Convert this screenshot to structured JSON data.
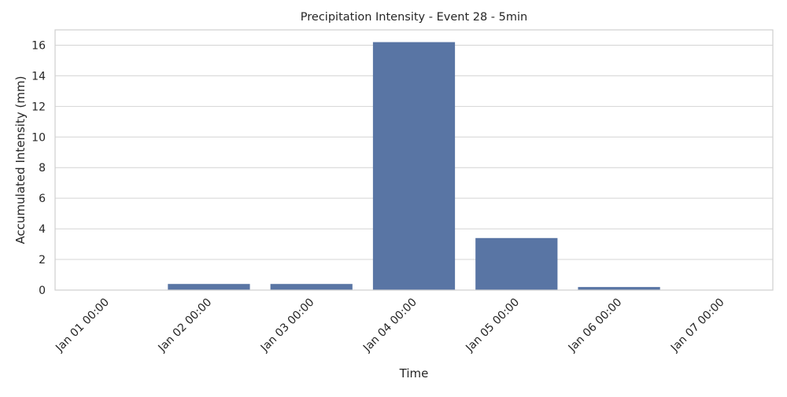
{
  "chart_data": {
    "type": "bar",
    "title": "Precipitation Intensity - Event 28 - 5min",
    "xlabel": "Time",
    "ylabel": "Accumulated Intensity (mm)",
    "categories": [
      "Jan 01 00:00",
      "Jan 02 00:00",
      "Jan 03 00:00",
      "Jan 04 00:00",
      "Jan 05 00:00",
      "Jan 06 00:00",
      "Jan 07 00:00"
    ],
    "values": [
      0.0,
      0.4,
      0.4,
      16.2,
      3.4,
      0.2,
      0.0
    ],
    "ylim": [
      0,
      17
    ],
    "yticks": [
      0,
      2,
      4,
      6,
      8,
      10,
      12,
      14,
      16
    ],
    "grid": true,
    "legend": "none",
    "bar_color": "#5975a4"
  }
}
